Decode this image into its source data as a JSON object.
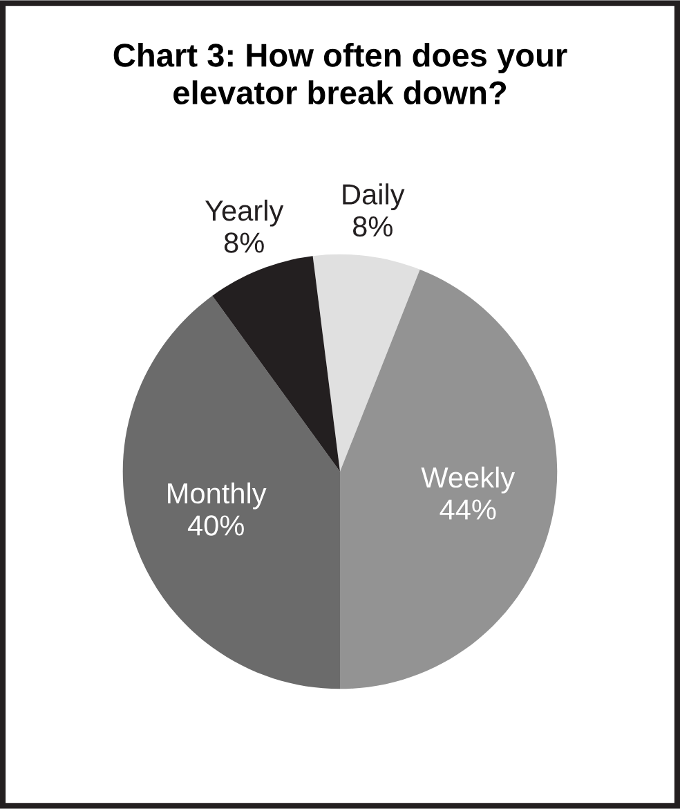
{
  "chart_data": {
    "type": "pie",
    "title": "Chart 3: How often does your\nelevator break down?",
    "categories": [
      "Daily",
      "Weekly",
      "Monthly",
      "Yearly"
    ],
    "values": [
      8,
      44,
      40,
      8
    ],
    "value_labels": [
      "8%",
      "44%",
      "40%",
      "8%"
    ],
    "colors": [
      "#e0e0e0",
      "#939393",
      "#6b6b6b",
      "#231f20"
    ],
    "legend": false
  }
}
